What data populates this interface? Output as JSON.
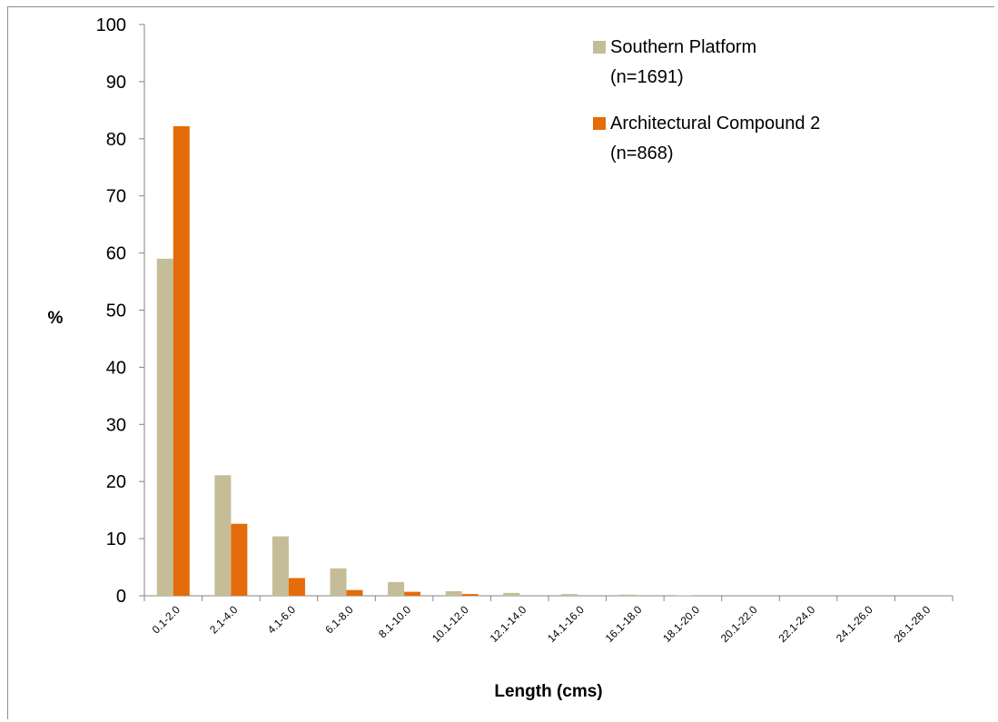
{
  "chart_data": {
    "type": "bar",
    "title": "",
    "xlabel": "Length (cms)",
    "ylabel": "%",
    "ylim": [
      0,
      100
    ],
    "yticks": [
      0,
      10,
      20,
      30,
      40,
      50,
      60,
      70,
      80,
      90,
      100
    ],
    "grid": false,
    "legend_position": "top-right",
    "categories": [
      "0.1-2.0",
      "2.1-4.0",
      "4.1-6.0",
      "6.1-8.0",
      "8.1-10.0",
      "10.1-12.0",
      "12.1-14.0",
      "14.1-16.0",
      "16.1-18.0",
      "18.1-20.0",
      "20.1-22.0",
      "22.1-24.0",
      "24.1-26.0",
      "26.1-28.0"
    ],
    "series": [
      {
        "name": "Southern Platform",
        "legend_label_line1": "Southern Platform",
        "legend_label_line2": "(n=1691)",
        "color": "#c4bd97",
        "values": [
          59.0,
          21.1,
          10.4,
          4.8,
          2.4,
          0.8,
          0.5,
          0.3,
          0.2,
          0.1,
          0.0,
          0.0,
          0.0,
          0.0
        ]
      },
      {
        "name": "Architectural Compound 2",
        "legend_label_line1": "Architectural Compound 2",
        "legend_label_line2": "(n=868)",
        "color": "#e46c0a",
        "values": [
          82.2,
          12.6,
          3.1,
          1.0,
          0.7,
          0.3,
          0.0,
          0.0,
          0.0,
          0.0,
          0.0,
          0.0,
          0.0,
          0.0
        ]
      }
    ]
  }
}
